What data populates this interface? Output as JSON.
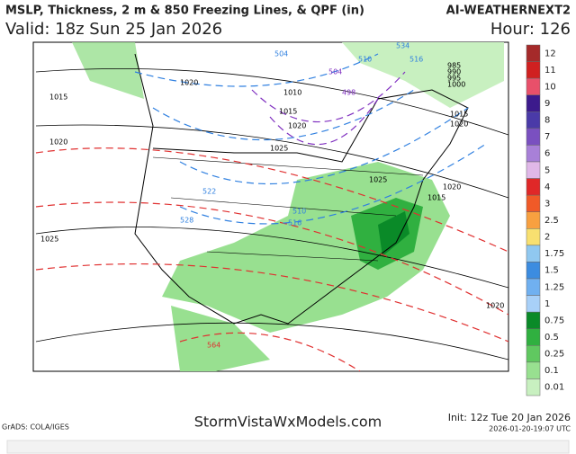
{
  "header": {
    "title": "MSLP, Thickness, 2 m & 850 Freezing Lines, & QPF (in)",
    "model": "AI-WEATHERNEXT2",
    "valid": "Valid: 18z Sun 25 Jan 2026",
    "hour": "Hour: 126"
  },
  "footer": {
    "credit": "GrADS: COLA/IGES",
    "site": "StormVistaWxModels.com",
    "init": "Init: 12z Tue 20 Jan 2026",
    "timestamp": "2026-01-20-19:07 UTC"
  },
  "legend": {
    "items": [
      {
        "value": 12,
        "color": "#a52a2a"
      },
      {
        "value": 11,
        "color": "#d02020"
      },
      {
        "value": 10,
        "color": "#e8506a"
      },
      {
        "value": 9,
        "color": "#3c1a8c"
      },
      {
        "value": 8,
        "color": "#4a3aa8"
      },
      {
        "value": 7,
        "color": "#7a50c0"
      },
      {
        "value": 6,
        "color": "#a880d8"
      },
      {
        "value": 5,
        "color": "#e0b8e8"
      },
      {
        "value": 4,
        "color": "#e02828"
      },
      {
        "value": 3,
        "color": "#f05a28"
      },
      {
        "value": 2.5,
        "color": "#f8a040"
      },
      {
        "value": 2,
        "color": "#f8e070"
      },
      {
        "value": 1.75,
        "color": "#90c8f0"
      },
      {
        "value": 1.5,
        "color": "#3c8ce0"
      },
      {
        "value": 1.25,
        "color": "#70b0f0"
      },
      {
        "value": 1,
        "color": "#a8d0f8"
      },
      {
        "value": 0.75,
        "color": "#0a8a28"
      },
      {
        "value": 0.5,
        "color": "#30b040"
      },
      {
        "value": 0.25,
        "color": "#60c860"
      },
      {
        "value": 0.1,
        "color": "#98e090"
      },
      {
        "value": 0.01,
        "color": "#c8f0c0"
      }
    ]
  },
  "map": {
    "labels": [
      "1015",
      "1020",
      "1020",
      "1025",
      "1010",
      "1015",
      "1020",
      "1025",
      "1025",
      "1015",
      "1020",
      "1020",
      "1020",
      "1015",
      "985",
      "990",
      "995",
      "1000",
      "504",
      "510",
      "516",
      "522",
      "528",
      "534",
      "510",
      "516",
      "504",
      "498",
      "564"
    ]
  }
}
